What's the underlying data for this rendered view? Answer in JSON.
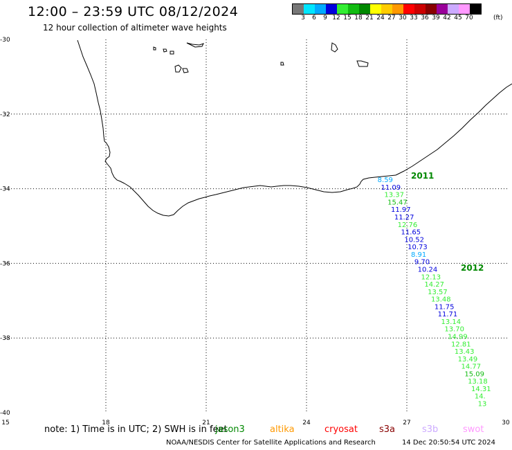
{
  "header": {
    "title": "12:00 – 23:59 UTC 08/12/2024",
    "subtitle": "12 hour collection of altimeter wave heights"
  },
  "colorbar": {
    "colors": [
      "#777777",
      "#00e6ff",
      "#00aaff",
      "#0000dd",
      "#33ee33",
      "#11bb11",
      "#008800",
      "#ffff00",
      "#ffcc00",
      "#ff9900",
      "#ff0000",
      "#cc0000",
      "#880000",
      "#990099",
      "#ccaaff",
      "#ff99ff",
      "#000000"
    ],
    "labels": [
      "3",
      "6",
      "9",
      "12",
      "15",
      "18",
      "21",
      "24",
      "27",
      "30",
      "33",
      "36",
      "39",
      "42",
      "45",
      "70"
    ],
    "unit": "(ft)"
  },
  "axes": {
    "lon_ticks": [
      "15",
      "18",
      "21",
      "24",
      "27",
      "30"
    ],
    "lat_ticks": [
      "-30",
      "-32",
      "-34",
      "-36",
      "-38",
      "-40"
    ]
  },
  "track_labels": [
    {
      "text": "2011",
      "color": "#008800"
    },
    {
      "text": "2012",
      "color": "#008800"
    }
  ],
  "wave_heights": [
    {
      "value": "8.59",
      "lat": -33.75,
      "lon": 26.0,
      "color": "#00aaff"
    },
    {
      "value": "11.09",
      "lat": -33.95,
      "lon": 26.1,
      "color": "#0000dd"
    },
    {
      "value": "13.37",
      "lat": -34.15,
      "lon": 26.2,
      "color": "#33ee33"
    },
    {
      "value": "15.47",
      "lat": -34.35,
      "lon": 26.3,
      "color": "#11bb11"
    },
    {
      "value": "11.97",
      "lat": -34.55,
      "lon": 26.4,
      "color": "#0000dd"
    },
    {
      "value": "11.27",
      "lat": -34.75,
      "lon": 26.5,
      "color": "#0000dd"
    },
    {
      "value": "12.76",
      "lat": -34.95,
      "lon": 26.6,
      "color": "#33ee33"
    },
    {
      "value": "11.65",
      "lat": -35.15,
      "lon": 26.7,
      "color": "#0000dd"
    },
    {
      "value": "10.52",
      "lat": -35.35,
      "lon": 26.8,
      "color": "#0000dd"
    },
    {
      "value": "10.73",
      "lat": -35.55,
      "lon": 26.9,
      "color": "#0000dd"
    },
    {
      "value": "8.91",
      "lat": -35.75,
      "lon": 27.0,
      "color": "#00aaff"
    },
    {
      "value": "9.70",
      "lat": -35.95,
      "lon": 27.1,
      "color": "#0000dd"
    },
    {
      "value": "10.24",
      "lat": -36.15,
      "lon": 27.2,
      "color": "#0000dd"
    },
    {
      "value": "12.13",
      "lat": -36.35,
      "lon": 27.3,
      "color": "#33ee33"
    },
    {
      "value": "14.27",
      "lat": -36.55,
      "lon": 27.4,
      "color": "#33ee33"
    },
    {
      "value": "13.57",
      "lat": -36.75,
      "lon": 27.5,
      "color": "#33ee33"
    },
    {
      "value": "13.48",
      "lat": -36.95,
      "lon": 27.6,
      "color": "#33ee33"
    },
    {
      "value": "11.75",
      "lat": -37.15,
      "lon": 27.7,
      "color": "#0000dd"
    },
    {
      "value": "11.71",
      "lat": -37.35,
      "lon": 27.8,
      "color": "#0000dd"
    },
    {
      "value": "13.14",
      "lat": -37.55,
      "lon": 27.9,
      "color": "#33ee33"
    },
    {
      "value": "13.70",
      "lat": -37.75,
      "lon": 28.0,
      "color": "#33ee33"
    },
    {
      "value": "14.99",
      "lat": -37.95,
      "lon": 28.1,
      "color": "#33ee33"
    },
    {
      "value": "12.81",
      "lat": -38.15,
      "lon": 28.2,
      "color": "#33ee33"
    },
    {
      "value": "13.43",
      "lat": -38.35,
      "lon": 28.3,
      "color": "#33ee33"
    },
    {
      "value": "13.49",
      "lat": -38.55,
      "lon": 28.4,
      "color": "#33ee33"
    },
    {
      "value": "14.77",
      "lat": -38.75,
      "lon": 28.5,
      "color": "#33ee33"
    },
    {
      "value": "15.09",
      "lat": -38.95,
      "lon": 28.6,
      "color": "#11bb11"
    },
    {
      "value": "13.18",
      "lat": -39.15,
      "lon": 28.7,
      "color": "#33ee33"
    },
    {
      "value": "14.31",
      "lat": -39.35,
      "lon": 28.8,
      "color": "#33ee33"
    },
    {
      "value": "14.",
      "lat": -39.55,
      "lon": 28.9,
      "color": "#33ee33"
    },
    {
      "value": "13",
      "lat": -39.75,
      "lon": 29.0,
      "color": "#33ee33"
    }
  ],
  "footer": {
    "note": "note:  1) Time is in UTC;  2) SWH is in feet",
    "satellites": [
      {
        "name": "jason3",
        "color": "#008800"
      },
      {
        "name": "altika",
        "color": "#ff9900"
      },
      {
        "name": "cryosat",
        "color": "#ff0000"
      },
      {
        "name": "s3a",
        "color": "#880000"
      },
      {
        "name": "s3b",
        "color": "#ccaaff"
      },
      {
        "name": "swot",
        "color": "#ff99ff"
      }
    ],
    "credit": "NOAA/NESDIS Center for Satellite Applications and Research",
    "timestamp": "14 Dec 20:50:54 UTC 2024"
  }
}
